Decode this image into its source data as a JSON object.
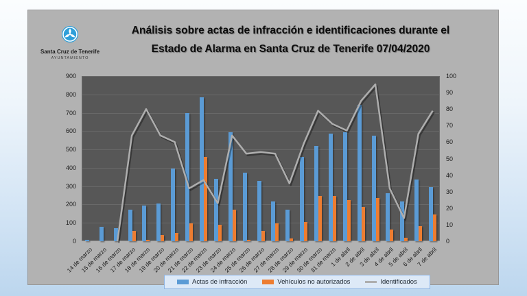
{
  "title": {
    "line1": "Análisis sobre actas de infracción e identificaciones durante el",
    "line2": "Estado de Alarma en Santa Cruz de Tenerife  07/04/2020"
  },
  "logo": {
    "org_name": "Santa Cruz de Tenerife",
    "org_subtitle": "AYUNTAMIENTO",
    "icon_color": "#2e9fd9"
  },
  "chart_data": {
    "type": "bar",
    "subtype": "grouped bars with secondary-axis line",
    "categories": [
      "14 de marzo",
      "15 de marzo",
      "16 de marzo",
      "17 de marzo",
      "18 de marzo",
      "19 de marzo",
      "20 de marzo",
      "21 de marzo",
      "22 de marzo",
      "23 de marzo",
      "24 de marzo",
      "25 de marzo",
      "26 de marzo",
      "27 de marzo",
      "28 de marzo",
      "29 de marzo",
      "30 de marzo",
      "31 de marzo",
      "1 de abril",
      "2 de abril",
      "3 de abril",
      "4 de abril",
      "5 de abril",
      "6 de abril",
      "7 de abril"
    ],
    "series": [
      {
        "name": "Actas de infracción",
        "type": "bar",
        "axis": "left",
        "color": "#5b9bd5",
        "values": [
          8,
          80,
          70,
          170,
          195,
          205,
          395,
          700,
          785,
          340,
          595,
          375,
          330,
          215,
          170,
          460,
          520,
          585,
          595,
          745,
          575,
          260,
          218,
          335,
          295
        ]
      },
      {
        "name": "Vehículos no autorizados",
        "type": "bar",
        "axis": "left",
        "color": "#ed7d31",
        "values": [
          0,
          0,
          0,
          55,
          8,
          35,
          45,
          98,
          460,
          90,
          170,
          8,
          55,
          98,
          15,
          105,
          245,
          245,
          225,
          188,
          235,
          62,
          18,
          82,
          145
        ]
      },
      {
        "name": "Identificados",
        "type": "line",
        "axis": "right",
        "color": "#aeaeae",
        "values": [
          null,
          null,
          0,
          64,
          80,
          64,
          60,
          32,
          37,
          23,
          64,
          53,
          54,
          53,
          35,
          59,
          79,
          71,
          67,
          85,
          95,
          32,
          14,
          65,
          79
        ]
      }
    ],
    "left_axis": {
      "min": 0,
      "max": 900,
      "step": 100,
      "ticks": [
        "900",
        "800",
        "700",
        "600",
        "500",
        "400",
        "300",
        "200",
        "100",
        "0"
      ]
    },
    "right_axis": {
      "min": 0,
      "max": 100,
      "step": 10,
      "ticks": [
        "100",
        "90",
        "80",
        "70",
        "60",
        "50",
        "40",
        "30",
        "20",
        "10",
        "0"
      ]
    },
    "plot_background": "#575757",
    "grid": true,
    "legend_position": "bottom"
  },
  "legend": {
    "background": "#dde9f7",
    "border_color": "#8eb4e3"
  }
}
